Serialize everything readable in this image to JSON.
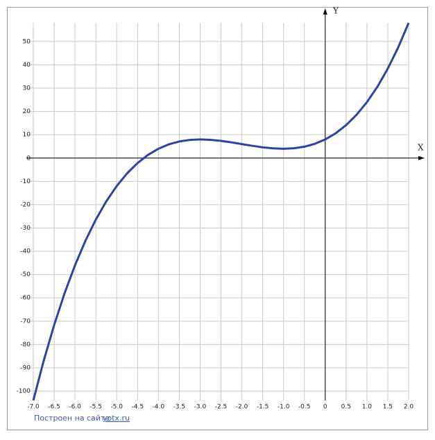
{
  "chart_data": {
    "type": "line",
    "xlabel": "X",
    "ylabel": "Y",
    "x": [
      -7,
      -6.75,
      -6.5,
      -6.25,
      -6,
      -5.75,
      -5.5,
      -5.25,
      -5,
      -4.75,
      -4.5,
      -4.25,
      -4,
      -3.75,
      -3.5,
      -3.25,
      -3,
      -2.75,
      -2.5,
      -2.25,
      -2,
      -1.75,
      -1.5,
      -1.25,
      -1,
      -0.75,
      -0.5,
      -0.25,
      0,
      0.25,
      0.5,
      0.75,
      1,
      1.25,
      1.5,
      1.75,
      2
    ],
    "values": [
      -104,
      -86.921875,
      -71.625,
      -58.015625,
      -46,
      -35.484375,
      -26.375,
      -18.578125,
      -12,
      -6.546875,
      -2.125,
      1.359375,
      4,
      5.890625,
      7.125,
      7.796875,
      8,
      7.828125,
      7.375,
      6.734375,
      6,
      5.265625,
      4.625,
      4.171875,
      4,
      4.203125,
      4.875,
      6.109375,
      8,
      10.640625,
      14.125,
      18.546875,
      24,
      30.578125,
      38.375,
      47.484375,
      58
    ],
    "color": "#2a44a4",
    "xlim": [
      -7,
      2
    ],
    "ylim": [
      -104,
      58
    ],
    "xticks": [
      {
        "value": -7,
        "label": "-7.0"
      },
      -6.5,
      {
        "value": -6,
        "label": "-6.0"
      },
      -5.5,
      {
        "value": -5,
        "label": "-5.0"
      },
      -4.5,
      {
        "value": -4,
        "label": "-4.0"
      },
      -3.5,
      {
        "value": -3,
        "label": "-3.0"
      },
      -2.5,
      {
        "value": -2,
        "label": "-2.0"
      },
      -1.5,
      {
        "value": -1,
        "label": "-1.0"
      },
      -0.5,
      0,
      0.5,
      {
        "value": 1,
        "label": "1.0"
      },
      1.5,
      {
        "value": 2,
        "label": "2.0"
      }
    ],
    "yticks": [
      50,
      40,
      30,
      20,
      10,
      0,
      -10,
      -20,
      -30,
      -40,
      -50,
      -60,
      -70,
      -80,
      -90,
      -100
    ],
    "grid": true
  },
  "footer": {
    "text": "Построен на сайте",
    "link": "yotx.ru"
  }
}
